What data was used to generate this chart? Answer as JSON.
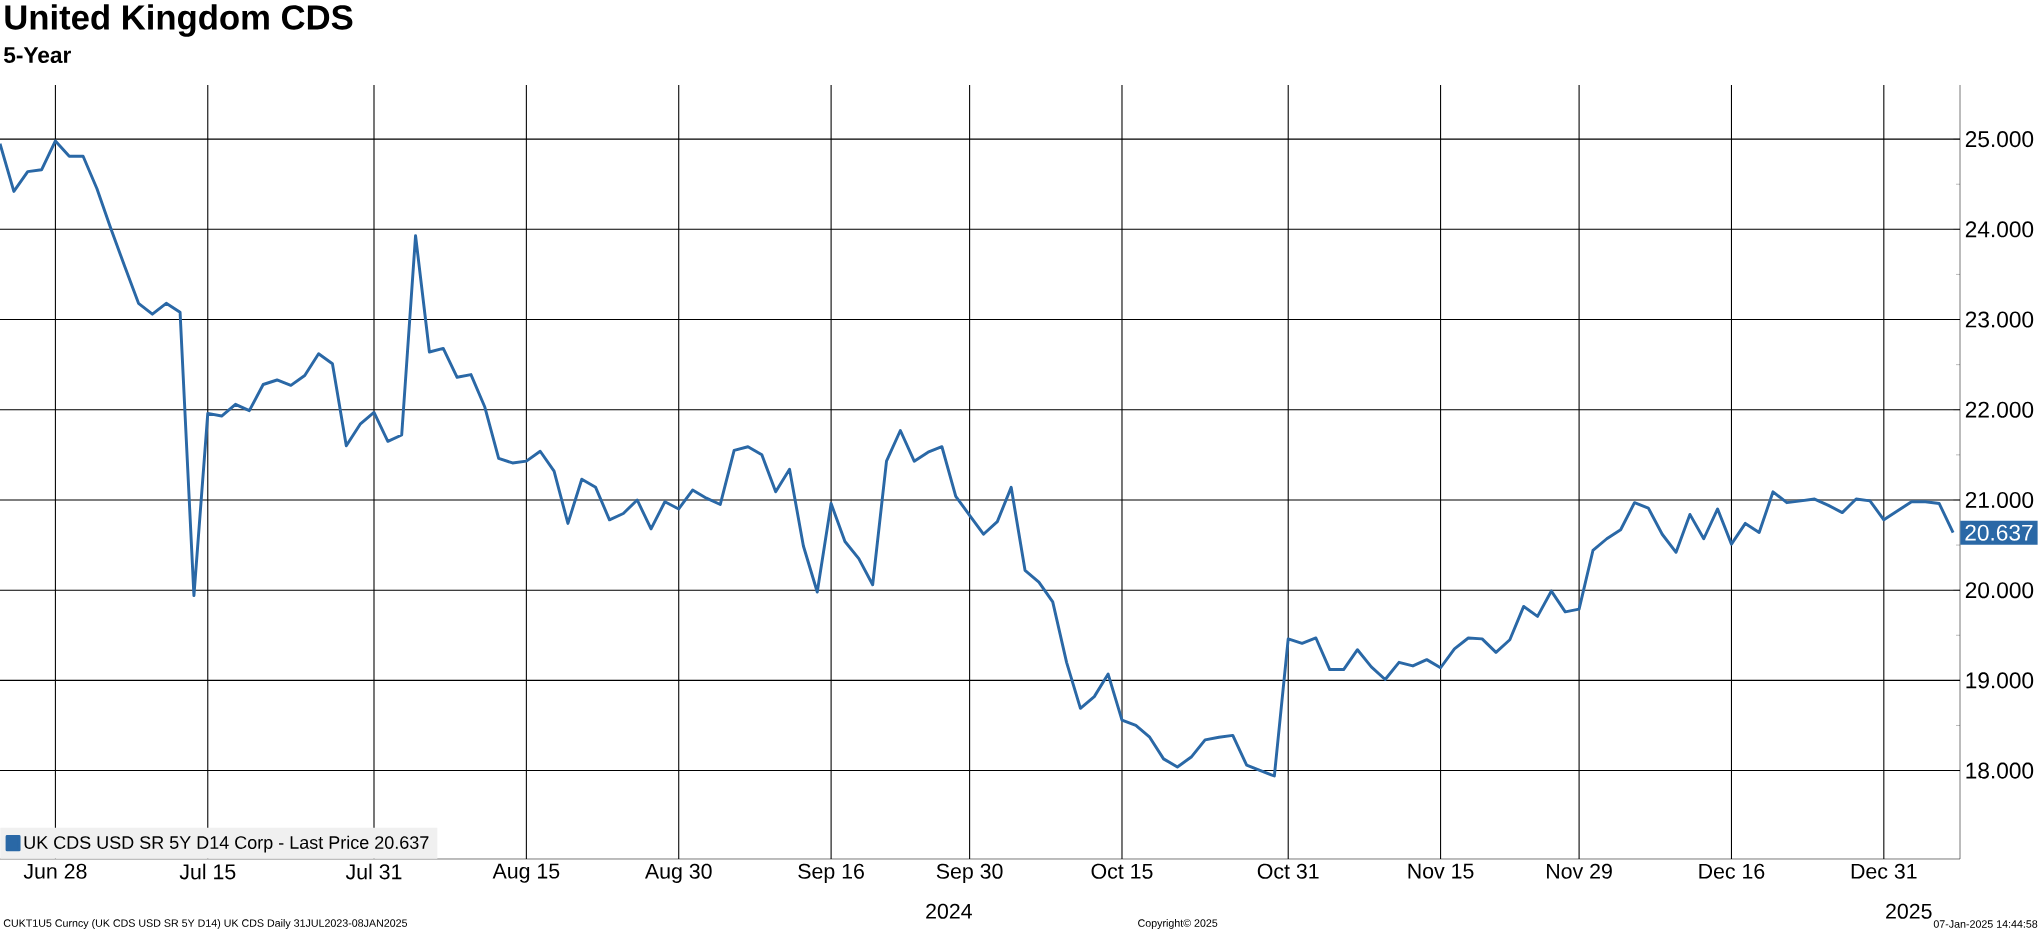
{
  "chart_data": {
    "type": "line",
    "title": "United Kingdom CDS",
    "subtitle": "5-Year",
    "categories": [
      null,
      null,
      null,
      null,
      "Jun 28",
      null,
      null,
      null,
      null,
      null,
      null,
      null,
      null,
      null,
      null,
      "Jul 15",
      null,
      null,
      null,
      null,
      null,
      null,
      null,
      null,
      null,
      null,
      null,
      "Jul 31",
      null,
      null,
      null,
      null,
      null,
      null,
      null,
      null,
      null,
      null,
      "Aug 15",
      null,
      null,
      null,
      null,
      null,
      null,
      null,
      null,
      null,
      null,
      "Aug 30",
      null,
      null,
      null,
      null,
      null,
      null,
      null,
      null,
      null,
      null,
      "Sep 16",
      null,
      null,
      null,
      null,
      null,
      null,
      null,
      null,
      null,
      "Sep 30",
      null,
      null,
      null,
      null,
      null,
      null,
      null,
      null,
      null,
      null,
      "Oct 15",
      null,
      null,
      null,
      null,
      null,
      null,
      null,
      null,
      null,
      null,
      null,
      "Oct 31",
      null,
      null,
      null,
      null,
      null,
      null,
      null,
      null,
      null,
      null,
      "Nov 15",
      null,
      null,
      null,
      null,
      null,
      null,
      null,
      null,
      null,
      "Nov 29",
      null,
      null,
      null,
      null,
      null,
      null,
      null,
      null,
      null,
      null,
      "Dec 16",
      null,
      null,
      null,
      null,
      null,
      null,
      null,
      null,
      null,
      null,
      "Dec 31",
      null,
      null,
      null,
      null,
      null
    ],
    "series": [
      {
        "name": "UK CDS USD SR 5Y D14 Corp - Last Price 20.637",
        "color": "#2a68a6",
        "values": [
          24.95,
          24.42,
          24.64,
          24.66,
          24.98,
          24.81,
          24.81,
          24.45,
          24.01,
          23.59,
          23.18,
          23.06,
          23.18,
          23.08,
          19.94,
          21.96,
          21.93,
          22.06,
          21.99,
          22.28,
          22.33,
          22.27,
          22.38,
          22.62,
          22.51,
          21.6,
          21.84,
          21.97,
          21.65,
          21.72,
          23.93,
          22.64,
          22.68,
          22.36,
          22.39,
          22.03,
          21.46,
          21.41,
          21.43,
          21.54,
          21.32,
          20.74,
          21.23,
          21.14,
          20.78,
          20.85,
          21.0,
          20.68,
          20.98,
          20.9,
          21.11,
          21.02,
          20.95,
          21.55,
          21.59,
          21.5,
          21.09,
          21.34,
          20.49,
          19.98,
          20.96,
          20.54,
          20.35,
          20.06,
          21.43,
          21.77,
          21.43,
          21.53,
          21.59,
          21.04,
          20.83,
          20.62,
          20.76,
          21.14,
          20.22,
          20.09,
          19.87,
          19.2,
          18.69,
          18.82,
          19.07,
          18.56,
          18.5,
          18.37,
          18.13,
          18.04,
          18.15,
          18.34,
          18.37,
          18.39,
          18.06,
          18.0,
          17.94,
          19.46,
          19.41,
          19.47,
          19.12,
          19.12,
          19.34,
          19.15,
          19.01,
          19.2,
          19.16,
          19.23,
          19.14,
          19.35,
          19.47,
          19.46,
          19.31,
          19.45,
          19.82,
          19.71,
          19.99,
          19.76,
          19.79,
          20.44,
          20.57,
          20.67,
          20.97,
          20.91,
          20.62,
          20.42,
          20.84,
          20.57,
          20.9,
          20.51,
          20.74,
          20.64,
          21.09,
          20.97,
          20.99,
          21.01,
          20.94,
          20.86,
          21.01,
          20.99,
          20.78,
          20.88,
          20.98,
          20.98,
          20.96,
          20.637
        ],
        "value_labels": [
          null,
          null,
          null,
          null,
          null,
          null,
          null,
          null,
          null,
          null,
          null,
          null,
          null,
          null,
          null,
          null,
          null,
          null,
          null,
          null,
          null,
          null,
          null,
          null,
          null,
          null,
          null,
          null,
          null,
          null,
          null,
          null,
          null,
          null,
          null,
          null,
          null,
          null,
          null,
          null,
          null,
          null,
          null,
          null,
          null,
          null,
          null,
          null,
          null,
          null,
          null,
          null,
          null,
          null,
          null,
          null,
          null,
          null,
          null,
          null,
          null,
          null,
          null,
          null,
          null,
          null,
          null,
          null,
          null,
          null,
          null,
          null,
          null,
          null,
          null,
          null,
          null,
          null,
          null,
          null,
          null,
          null,
          null,
          null,
          null,
          null,
          null,
          null,
          null,
          null,
          null,
          null,
          null,
          null,
          null,
          null,
          null,
          null,
          null,
          null,
          null,
          null,
          null,
          null,
          null,
          null,
          null,
          null,
          null,
          null,
          null,
          null,
          null,
          null,
          null,
          null,
          null,
          null,
          null,
          null,
          null,
          null,
          null,
          null,
          null,
          null,
          null,
          null,
          null,
          null,
          null,
          null,
          null,
          null,
          null,
          null,
          null,
          null,
          null,
          null,
          null,
          "20.637"
        ]
      }
    ],
    "ylim": [
      17.02,
      25.6
    ],
    "yticks": [
      {
        "value": 18,
        "label": "18.000"
      },
      {
        "value": 19,
        "label": "19.000"
      },
      {
        "value": 20,
        "label": "20.000"
      },
      {
        "value": 21,
        "label": "21.000"
      },
      {
        "value": 22,
        "label": "22.000"
      },
      {
        "value": 23,
        "label": "23.000"
      },
      {
        "value": 24,
        "label": "24.000"
      },
      {
        "value": 25,
        "label": "25.000"
      }
    ],
    "grid": true,
    "legend": "bottom left",
    "annotations": [
      "2024",
      "2025",
      "CUKT1U5 Curncy (UK CDS USD SR 5Y D14) UK CDS  Daily 31JUL2023-08JAN2025",
      "Copyright© 2025",
      "07-Jan-2025 14:44:58"
    ]
  }
}
